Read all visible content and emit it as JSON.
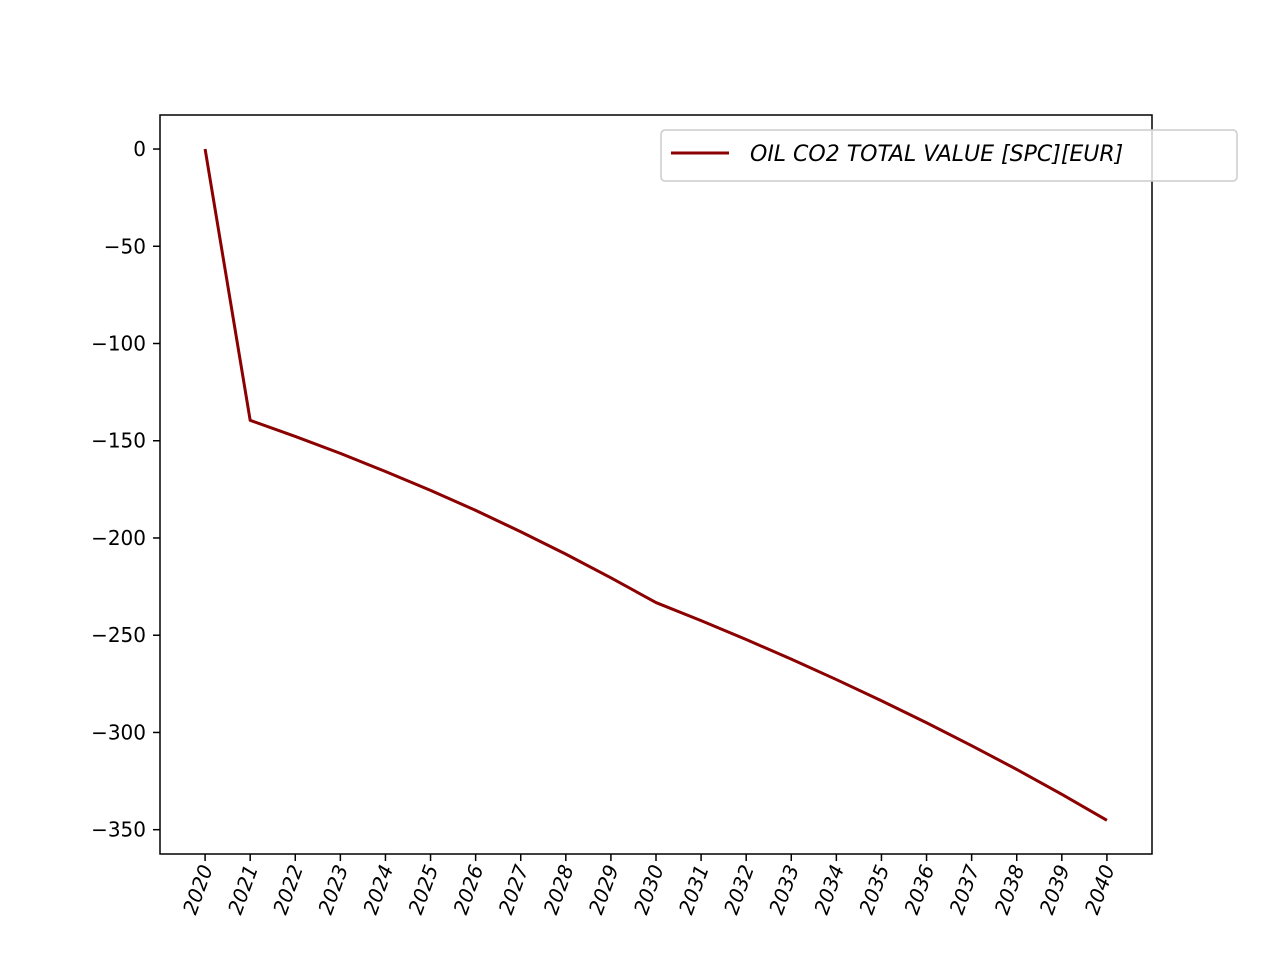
{
  "chart_data": {
    "type": "line",
    "title": "",
    "xlabel": "",
    "ylabel": "",
    "x": [
      2020,
      2021,
      2022,
      2023,
      2024,
      2025,
      2026,
      2027,
      2028,
      2029,
      2030,
      2031,
      2032,
      2033,
      2034,
      2035,
      2036,
      2037,
      2038,
      2039,
      2040
    ],
    "x_tick_labels": [
      "2020",
      "2021",
      "2022",
      "2023",
      "2024",
      "2025",
      "2026",
      "2027",
      "2028",
      "2029",
      "2030",
      "2031",
      "2032",
      "2033",
      "2034",
      "2035",
      "2036",
      "2037",
      "2038",
      "2039",
      "2040"
    ],
    "y_ticks": [
      0,
      -50,
      -100,
      -150,
      -200,
      -250,
      -300,
      -350
    ],
    "y_tick_labels": [
      "0",
      "−50",
      "−100",
      "−150",
      "−200",
      "−250",
      "−300",
      "−350"
    ],
    "xlim": [
      2019.0,
      2041.0
    ],
    "ylim": [
      -362.5,
      17.5
    ],
    "series": [
      {
        "name": "OIL CO2 TOTAL VALUE [SPC][EUR]",
        "color": "#8b0000",
        "values": [
          0,
          -139.5,
          -147.8,
          -156.5,
          -165.8,
          -175.5,
          -185.8,
          -196.8,
          -208.3,
          -220.5,
          -233.2,
          -242.5,
          -252.2,
          -262.3,
          -272.8,
          -283.7,
          -295.0,
          -306.8,
          -319.0,
          -331.8,
          -345.2
        ]
      }
    ],
    "grid": false,
    "legend_position": "upper right"
  }
}
